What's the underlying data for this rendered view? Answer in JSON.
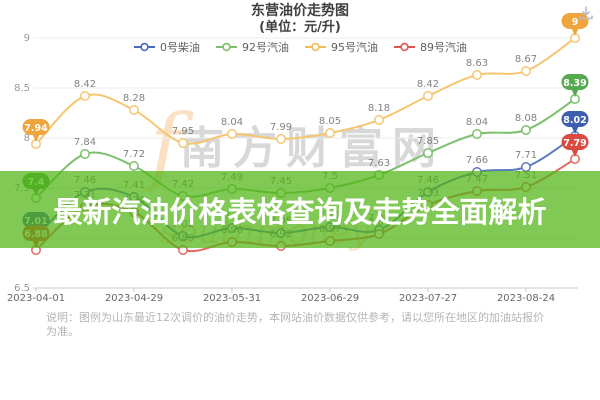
{
  "header": {
    "title": "东营油价走势图",
    "subtitle": "(单位：元/升)"
  },
  "legend": [
    {
      "key": "diesel-0",
      "label": "0号柴油",
      "color": "#4a69bd"
    },
    {
      "key": "gasoline-92",
      "label": "92号汽油",
      "color": "#7cc06d"
    },
    {
      "key": "gasoline-95",
      "label": "95号汽油",
      "color": "#f2bb57"
    },
    {
      "key": "gasoline-89",
      "label": "89号汽油",
      "color": "#dd574d"
    }
  ],
  "overlay": {
    "headline": "最新汽油价格表格查询及走势全面解析",
    "band_color": "rgba(80,180,20,0.72)"
  },
  "watermark": {
    "text": "南方财富网",
    "script_initial": "f",
    "script_text": "southmoney"
  },
  "note": "说明：图例为山东最近12次调价的油价走势，本网站油价数据仅供参考，请以您所在地区的加油站报价为准。",
  "toolbar": {
    "download_icon": "download"
  },
  "chart_data": {
    "type": "line",
    "title": "东营油价走势图",
    "unit": "元/升",
    "x_tick_labels": [
      "2023-04-01",
      "2023-04-29",
      "2023-05-31",
      "2023-06-29",
      "2023-07-27",
      "2023-08-24"
    ],
    "x_tick_indices": [
      0,
      2,
      4,
      6,
      8,
      10
    ],
    "num_points": 12,
    "y_ticks": [
      6.5,
      7,
      7.5,
      8,
      8.5,
      9
    ],
    "ylim": [
      6.5,
      9
    ],
    "grid": true,
    "legend_position": "top",
    "endpoint_balloons": true,
    "series": [
      {
        "name": "0号柴油",
        "color": "#5b79bd",
        "balloon": "#3d5fb0",
        "values": [
          7.01,
          7.46,
          7.41,
          7.02,
          7.1,
          7.05,
          7.11,
          7.08,
          7.46,
          7.66,
          7.71,
          8.02
        ]
      },
      {
        "name": "92号汽油",
        "color": "#7cc06d",
        "balloon": "#55a94e",
        "values": [
          7.4,
          7.84,
          7.72,
          7.42,
          7.49,
          7.45,
          7.5,
          7.63,
          7.85,
          8.04,
          8.08,
          8.39
        ]
      },
      {
        "name": "95号汽油",
        "color": "#f5c672",
        "balloon": "#f0a53c",
        "values": [
          7.94,
          8.42,
          8.28,
          7.95,
          8.04,
          7.99,
          8.05,
          8.18,
          8.42,
          8.63,
          8.67,
          9.0
        ]
      },
      {
        "name": "89号汽油",
        "color": "#e2685f",
        "balloon": "#d94b40",
        "values": [
          6.88,
          7.31,
          7.26,
          6.88,
          6.96,
          6.92,
          6.97,
          7.04,
          7.33,
          7.47,
          7.51,
          7.79
        ]
      }
    ]
  }
}
